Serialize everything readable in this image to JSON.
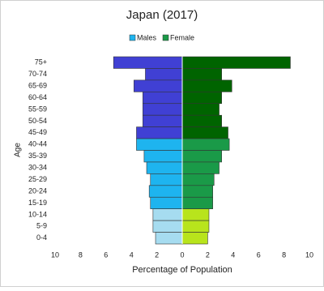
{
  "chart_data": {
    "type": "pyramid",
    "title": "Japan (2017)",
    "x_label": "Percentage of Population",
    "y_label": "Age",
    "categories": [
      "75+",
      "70-74",
      "65-69",
      "60-64",
      "55-59",
      "50-54",
      "45-49",
      "40-44",
      "35-39",
      "30-34",
      "25-29",
      "20-24",
      "15-19",
      "10-14",
      "5-9",
      "0-4"
    ],
    "series": [
      {
        "name": "Males",
        "color": "#1eb4ef",
        "colors": [
          "#4040d4",
          "#4040d4",
          "#4040d4",
          "#4040d4",
          "#4040d4",
          "#4040d4",
          "#4040d4",
          "#1eb4ef",
          "#1eb4ef",
          "#1eb4ef",
          "#1eb4ef",
          "#1eb4ef",
          "#1eb4ef",
          "#a6dcf0",
          "#a6dcf0",
          "#a6dcf0"
        ],
        "values": [
          -5.4,
          -2.9,
          -3.8,
          -3.1,
          -3.1,
          -3.1,
          -3.6,
          -3.6,
          -3.0,
          -2.8,
          -2.5,
          -2.6,
          -2.5,
          -2.3,
          -2.3,
          -2.1
        ]
      },
      {
        "name": "Female",
        "color": "#1a9a48",
        "colors": [
          "#006400",
          "#006400",
          "#006400",
          "#006400",
          "#006400",
          "#006400",
          "#006400",
          "#1a9a48",
          "#1a9a48",
          "#1a9a48",
          "#1a9a48",
          "#1a9a48",
          "#1a9a48",
          "#b8e41c",
          "#b8e41c",
          "#b8e41c"
        ],
        "values": [
          8.5,
          3.1,
          3.9,
          3.1,
          2.9,
          3.1,
          3.6,
          3.7,
          3.1,
          2.9,
          2.5,
          2.4,
          2.4,
          2.1,
          2.1,
          2.0
        ]
      }
    ],
    "xlim": [
      -10,
      10
    ],
    "xticks": [
      {
        "value": -10,
        "label": "10"
      },
      {
        "value": -8,
        "label": "8"
      },
      {
        "value": -6,
        "label": "6"
      },
      {
        "value": -4,
        "label": "4"
      },
      {
        "value": -2,
        "label": "2"
      },
      0,
      2,
      4,
      6,
      8,
      10
    ],
    "legend": "top"
  }
}
